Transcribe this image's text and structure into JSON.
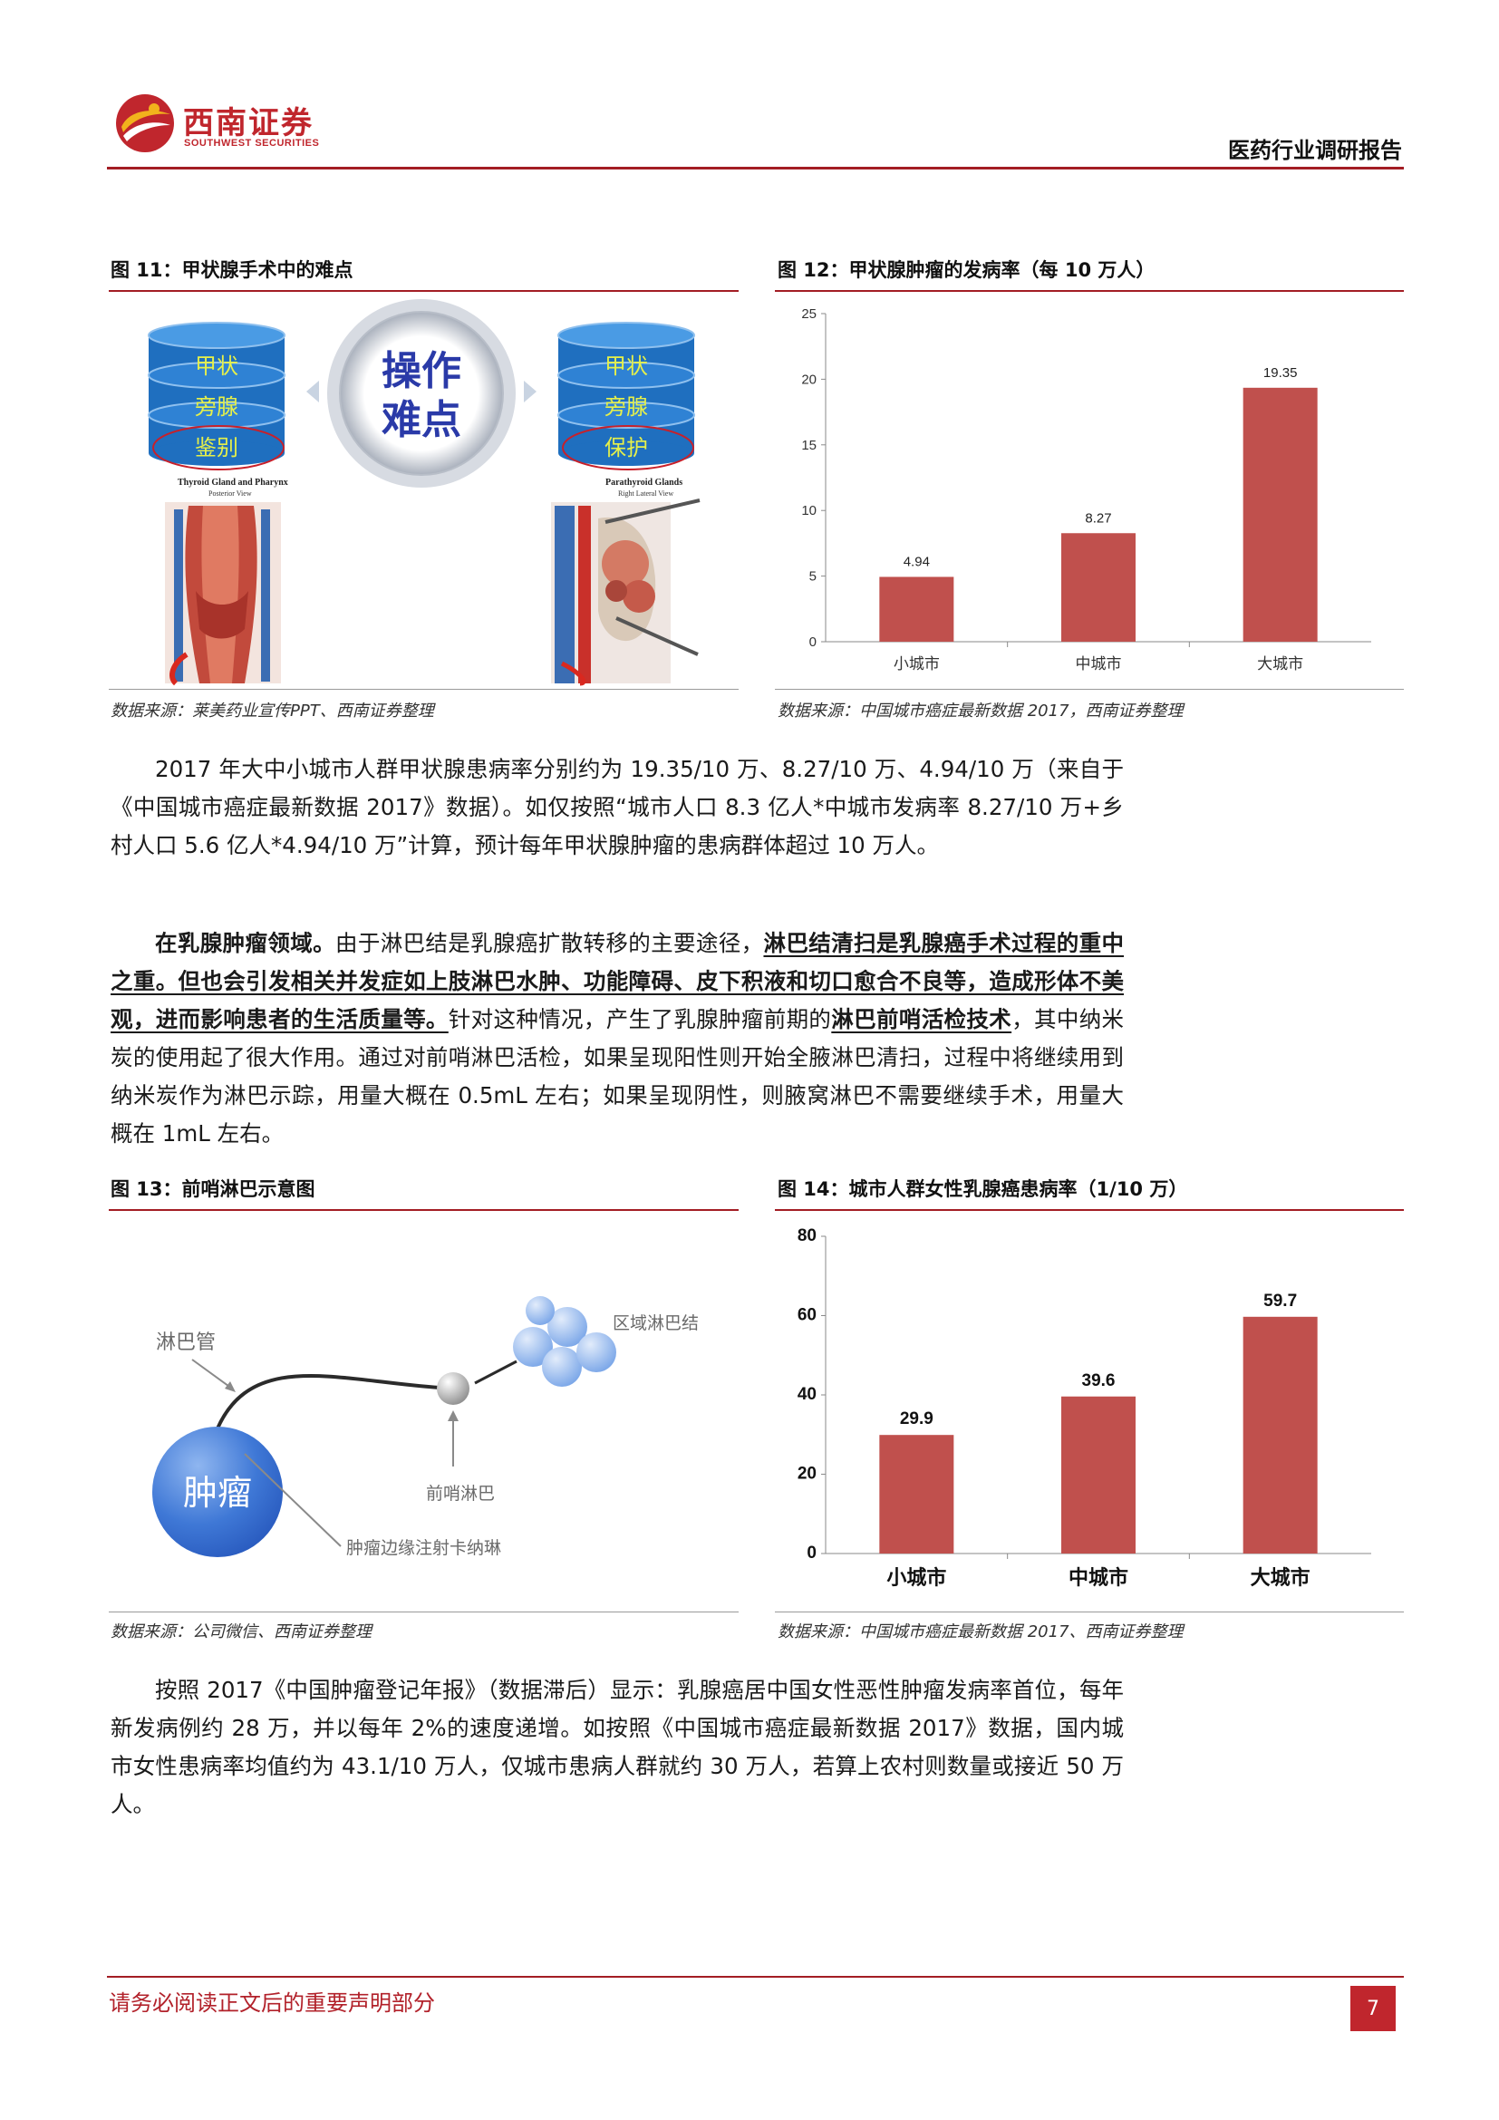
{
  "header": {
    "logo_cn": "西南证券",
    "logo_en": "SOUTHWEST SECURITIES",
    "report_type": "医药行业调研报告"
  },
  "fig11": {
    "title": "图 11：甲状腺手术中的难点",
    "left_stack": [
      "甲状",
      "旁腺",
      "鉴别"
    ],
    "right_stack": [
      "甲状",
      "旁腺",
      "保护"
    ],
    "center": [
      "操作",
      "难点"
    ],
    "left_caption": "Thyroid Gland and Pharynx",
    "left_subcaption": "Posterior View",
    "right_caption": "Parathyroid Glands",
    "right_subcaption": "Right Lateral View",
    "source": "数据来源：莱美药业宣传PPT、西南证券整理"
  },
  "fig12": {
    "title": "图 12：甲状腺肿瘤的发病率（每 10 万人）",
    "source": "数据来源：中国城市癌症最新数据 2017，西南证券整理"
  },
  "para1": {
    "text": "2017 年大中小城市人群甲状腺患病率分别约为 19.35/10 万、8.27/10 万、4.94/10 万（来自于《中国城市癌症最新数据 2017》数据）。如仅按照“城市人口 8.3 亿人*中城市发病率 8.27/10 万+乡村人口 5.6 亿人*4.94/10 万”计算，预计每年甲状腺肿瘤的患病群体超过 10 万人。"
  },
  "para2": {
    "lead": "在乳腺肿瘤领域。",
    "t1": "由于淋巴结是乳腺癌扩散转移的主要途径，",
    "u1": "淋巴结清扫是乳腺癌手术过程的重中之重。但也会引发相关并发症如上肢淋巴水肿、功能障碍、皮下积液和切口愈合不良等，造成形体不美观，进而影响患者的生活质量等。",
    "t2": "针对这种情况，产生了乳腺肿瘤前期的",
    "u2": "淋巴前哨活检技术",
    "t3": "，其中纳米炭的使用起了很大作用。通过对前哨淋巴活检，如果呈现阳性则开始全腋淋巴清扫，过程中将继续用到纳米炭作为淋巴示踪，用量大概在 0.5mL 左右；如果呈现阴性，则腋窝淋巴不需要继续手术，用量大概在 1mL 左右。"
  },
  "fig13": {
    "title": "图 13：前哨淋巴示意图",
    "label_vessel": "淋巴管",
    "label_regional": "区域淋巴结",
    "label_sentinel": "前哨淋巴",
    "label_tumor": "肿瘤",
    "label_injection": "肿瘤边缘注射卡纳琳",
    "source": "数据来源：公司微信、西南证券整理"
  },
  "fig14": {
    "title": "图 14：城市人群女性乳腺癌患病率（1/10 万）",
    "source": "数据来源：中国城市癌症最新数据 2017、西南证券整理"
  },
  "para3": {
    "text": "按照 2017《中国肿瘤登记年报》（数据滞后）显示：乳腺癌居中国女性恶性肿瘤发病率首位，每年新发病例约 28 万，并以每年 2%的速度递增。如按照《中国城市癌症最新数据 2017》数据，国内城市女性患病率均值约为 43.1/10 万人，仅城市患病人群就约 30 万人，若算上农村则数量或接近 50 万人。"
  },
  "footer": {
    "note": "请务必阅读正文后的重要声明部分",
    "page": "7"
  },
  "colors": {
    "brand_red": "#c0262d",
    "bar_red": "#c0504d",
    "cylinder_blue": "#1f6fbf"
  },
  "chart_data": [
    {
      "type": "bar",
      "id": "fig12",
      "categories": [
        "小城市",
        "中城市",
        "大城市"
      ],
      "values": [
        4.94,
        8.27,
        19.35
      ],
      "data_labels": [
        "4.94",
        "8.27",
        "19.35"
      ],
      "yticks": [
        "0",
        "5",
        "10",
        "15",
        "20",
        "25"
      ],
      "ylim": [
        0,
        25
      ],
      "grid": false,
      "legend": "none"
    },
    {
      "type": "bar",
      "id": "fig14",
      "categories": [
        "小城市",
        "中城市",
        "大城市"
      ],
      "values": [
        29.9,
        39.6,
        59.7
      ],
      "data_labels": [
        "29.9",
        "39.6",
        "59.7"
      ],
      "yticks": [
        "0",
        "20",
        "40",
        "60",
        "80"
      ],
      "ylim": [
        0,
        80
      ],
      "grid": false,
      "legend": "none"
    }
  ]
}
